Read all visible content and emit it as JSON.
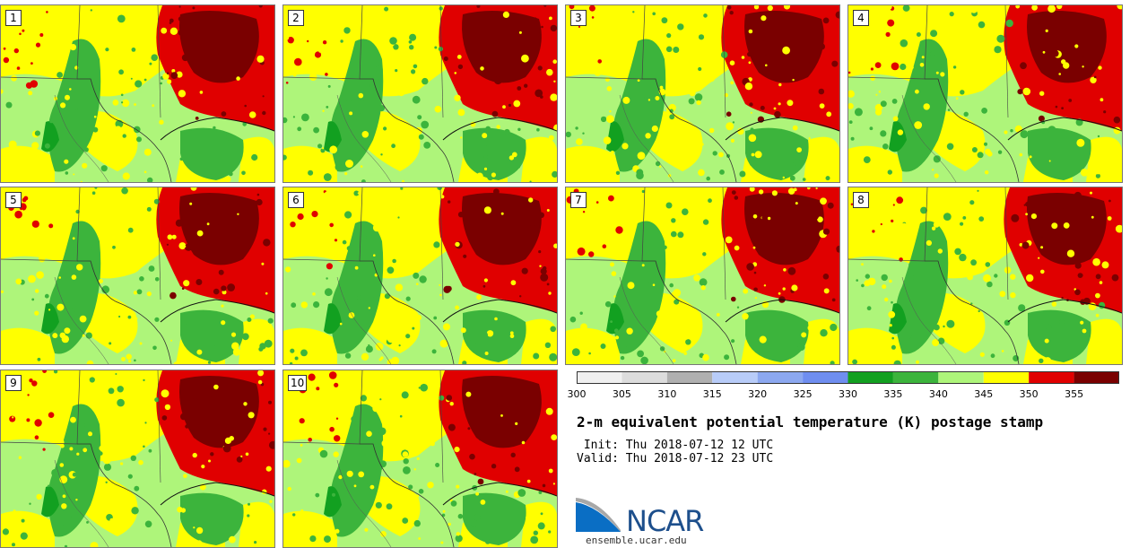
{
  "panels": [
    {
      "label": "1"
    },
    {
      "label": "2"
    },
    {
      "label": "3"
    },
    {
      "label": "4"
    },
    {
      "label": "5"
    },
    {
      "label": "6"
    },
    {
      "label": "7"
    },
    {
      "label": "8"
    },
    {
      "label": "9"
    },
    {
      "label": "10"
    }
  ],
  "colorbar": {
    "ticks": [
      "300",
      "305",
      "310",
      "315",
      "320",
      "325",
      "330",
      "335",
      "340",
      "345",
      "350",
      "355"
    ],
    "colors": [
      "#f0f0f0",
      "#dcdcdc",
      "#b0b0b0",
      "#b8ccf8",
      "#8ca8f0",
      "#6f8ef0",
      "#12a020",
      "#3cb43c",
      "#aef57a",
      "#ffff00",
      "#e00000",
      "#7a0000"
    ]
  },
  "title": "2-m equivalent potential temperature (K) postage stamp",
  "init": " Init: Thu 2018-07-12 12 UTC",
  "valid": "Valid: Thu 2018-07-12 23 UTC",
  "logo": {
    "name": "NCAR",
    "site": "ensemble.ucar.edu"
  }
}
